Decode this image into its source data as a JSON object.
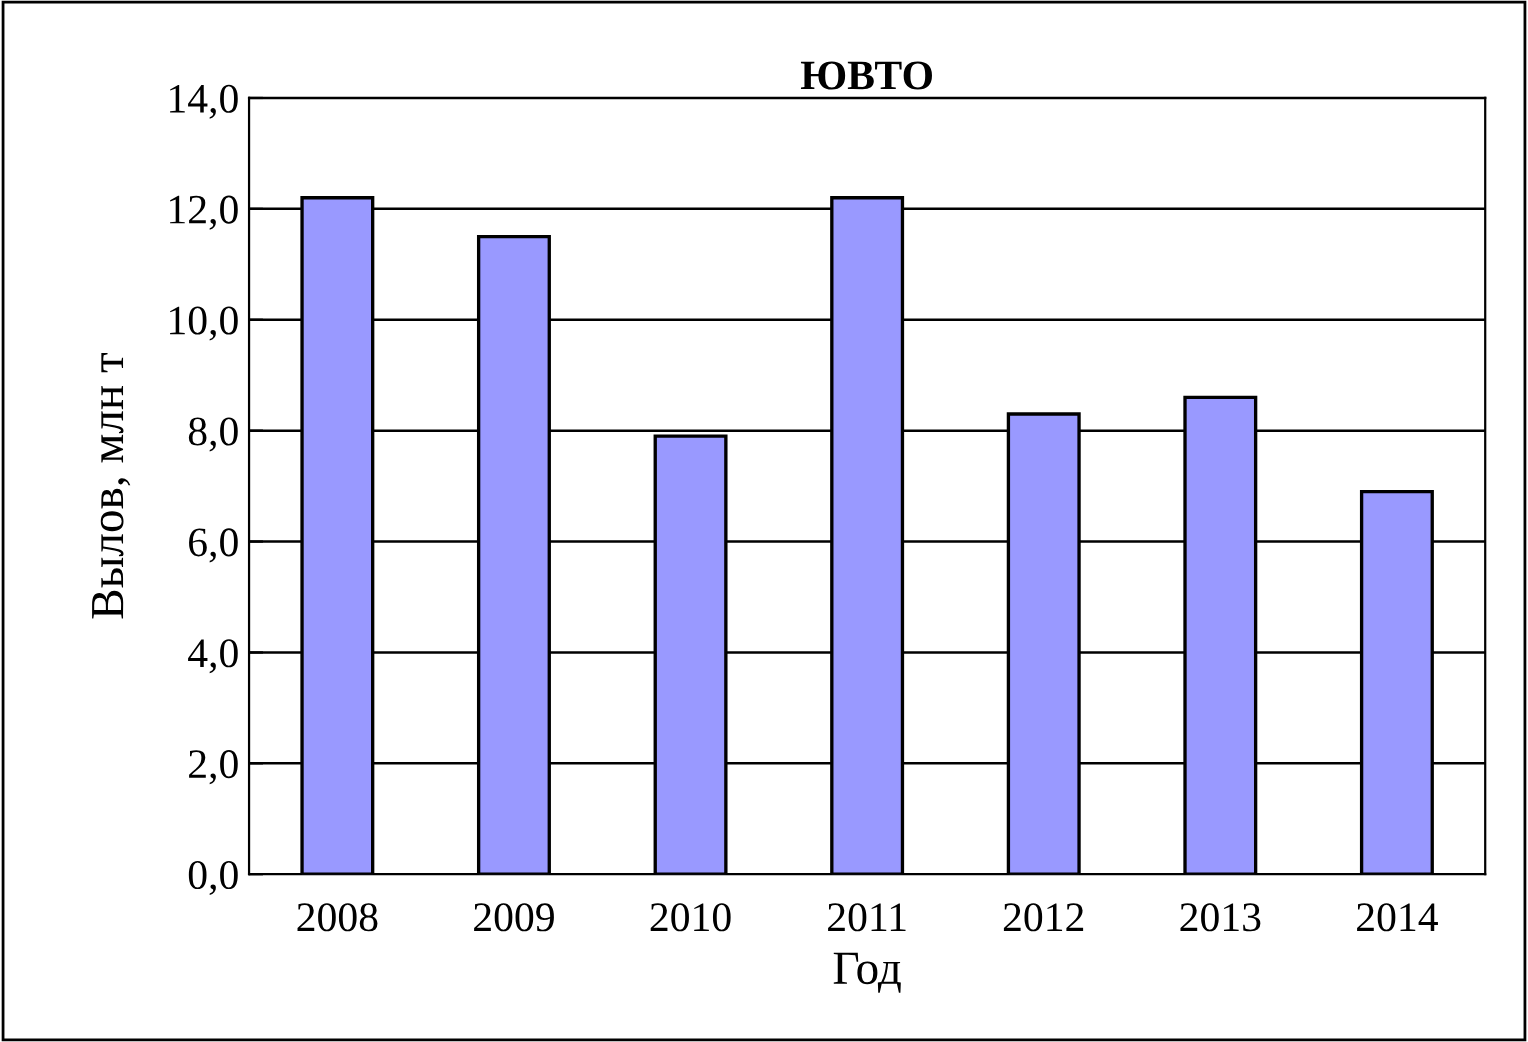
{
  "chart_data": {
    "type": "bar",
    "title": "ЮВТО",
    "xlabel": "Год",
    "ylabel": "Вылов, млн т",
    "categories": [
      "2008",
      "2009",
      "2010",
      "2011",
      "2012",
      "2013",
      "2014"
    ],
    "values": [
      12.2,
      11.5,
      7.9,
      12.2,
      8.3,
      8.6,
      6.9
    ],
    "color": "#9999ff",
    "ylim": [
      0,
      14
    ],
    "yticks": [
      {
        "value": 0,
        "label": "0,0"
      },
      {
        "value": 2,
        "label": "2,0"
      },
      {
        "value": 4,
        "label": "4,0"
      },
      {
        "value": 6,
        "label": "6,0"
      },
      {
        "value": 8,
        "label": "8,0"
      },
      {
        "value": 10,
        "label": "10,0"
      },
      {
        "value": 12,
        "label": "12,0"
      },
      {
        "value": 14,
        "label": "14,0"
      }
    ],
    "grid": "y",
    "legend": false
  }
}
